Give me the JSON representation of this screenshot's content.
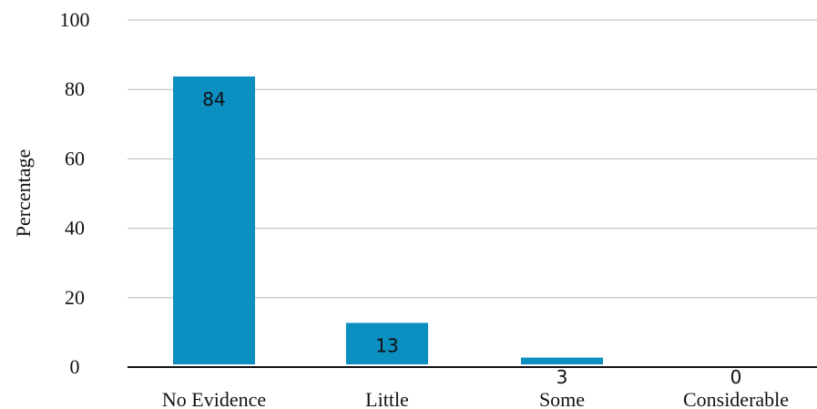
{
  "chart_data": {
    "type": "bar",
    "categories": [
      "No Evidence",
      "Little",
      "Some",
      "Considerable"
    ],
    "values": [
      84,
      13,
      3,
      0
    ],
    "data_labels": [
      "84",
      "13",
      "3",
      "0"
    ],
    "title": "",
    "xlabel": "",
    "ylabel": "Percentage",
    "ylim": [
      0,
      100
    ],
    "yticks": [
      0,
      20,
      40,
      60,
      80,
      100
    ],
    "ytick_labels": [
      "0",
      "20",
      "40",
      "60",
      "80",
      "100"
    ],
    "grid": true,
    "legend": "none",
    "bar_color": "#0b8ec0"
  }
}
